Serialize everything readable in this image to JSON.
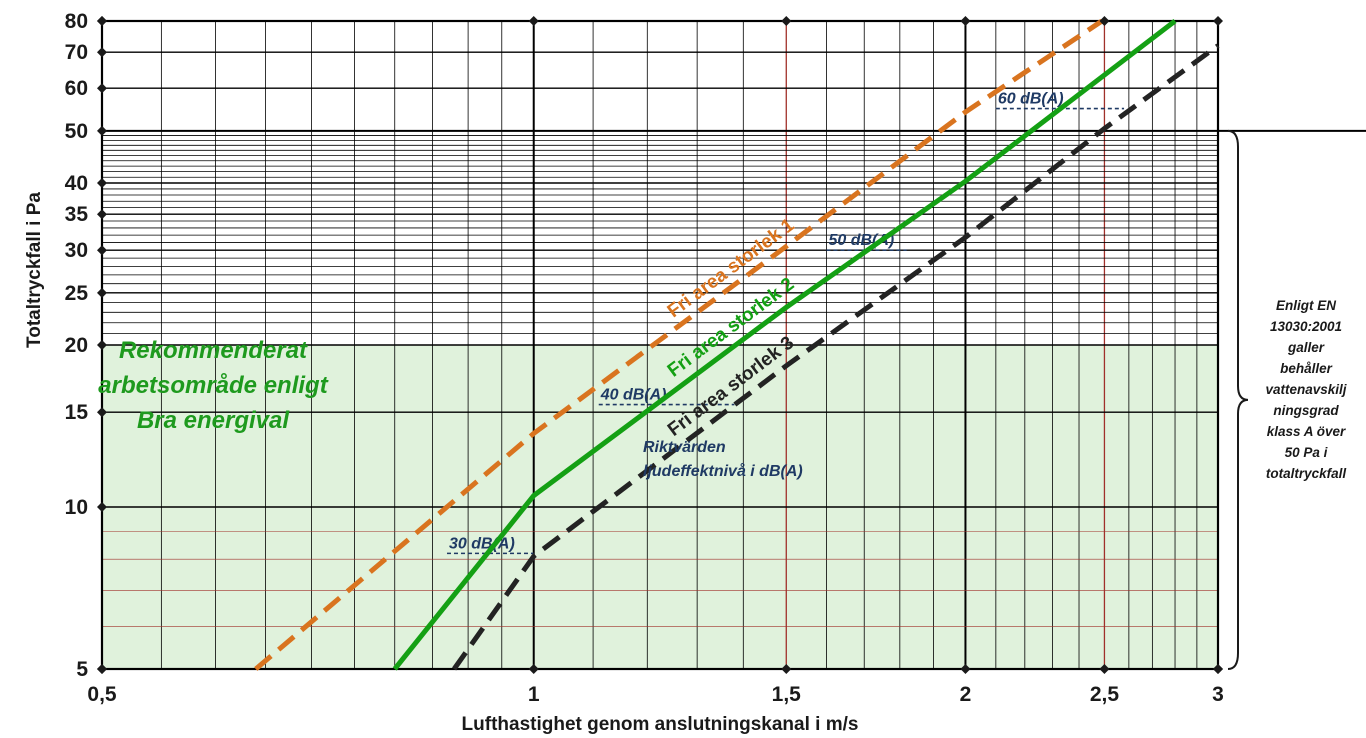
{
  "chart_data": {
    "type": "line",
    "x_scale": "log",
    "y_scale": "log",
    "xlim": [
      0.5,
      3
    ],
    "ylim": [
      5,
      80
    ],
    "xlabel": "Lufthastighet genom anslutningskanal i m/s",
    "ylabel": "Totaltryckfall i Pa",
    "x_ticks": [
      "0,5",
      "1",
      "1,5",
      "2",
      "2,5",
      "3"
    ],
    "x_tick_values": [
      0.5,
      1,
      1.5,
      2,
      2.5,
      3
    ],
    "y_ticks": [
      "5",
      "10",
      "15",
      "20",
      "25",
      "30",
      "35",
      "40",
      "50",
      "60",
      "70",
      "80"
    ],
    "y_tick_values": [
      5,
      10,
      15,
      20,
      25,
      30,
      35,
      40,
      50,
      60,
      70,
      80
    ],
    "grid": true,
    "series": [
      {
        "name": "Fri area storlek 1",
        "color": "#d9741f",
        "style": "dashed",
        "x": [
          0.64,
          1.0,
          1.5,
          2.0,
          2.49
        ],
        "y": [
          5,
          13.7,
          30.5,
          54.2,
          80
        ]
      },
      {
        "name": "Fri area storlek 2",
        "color": "#14a014",
        "style": "solid",
        "x": [
          0.8,
          1.0,
          1.5,
          2.0,
          2.8
        ],
        "y": [
          5,
          10.5,
          23.5,
          40.3,
          80
        ]
      },
      {
        "name": "Fri area storlek 3",
        "color": "#232323",
        "style": "dashed",
        "x": [
          0.88,
          1.0,
          1.5,
          2.0,
          2.5,
          3.0
        ],
        "y": [
          5,
          8.1,
          18.3,
          31.7,
          50.5,
          72
        ]
      }
    ],
    "sound_levels": [
      {
        "label": "30 dB(A)",
        "y": 8.2,
        "x_from": 0.87,
        "x_to": 1.0
      },
      {
        "label": "40 dB(A)",
        "y": 15.5,
        "x_from": 1.11,
        "x_to": 1.38
      },
      {
        "label": "50 dB(A)",
        "y": 30,
        "x_from": 1.6,
        "x_to": 1.82
      },
      {
        "label": "60 dB(A)",
        "y": 55,
        "x_from": 2.1,
        "x_to": 2.58
      }
    ],
    "recommended_region": {
      "y_max": 20,
      "color": "#e0f2dc",
      "label_lines": [
        "Rekommenderat",
        "arbetsområde enligt",
        "Bra energival"
      ]
    },
    "sound_note_lines": [
      "Riktvärden",
      "ljudeffektnivå i dB(A)"
    ],
    "side_note": {
      "y_from": 50,
      "y_to": 5,
      "lines": [
        "Enligt EN",
        "13030:2001",
        "galler",
        "behåller",
        "vattenavskilj",
        "ningsgrad",
        "klass A över",
        "50 Pa i",
        "totaltryckfall"
      ]
    },
    "colors": {
      "grid": "#000000",
      "red_grid": "#a0302a",
      "dB_text": "#1f3a64"
    }
  }
}
